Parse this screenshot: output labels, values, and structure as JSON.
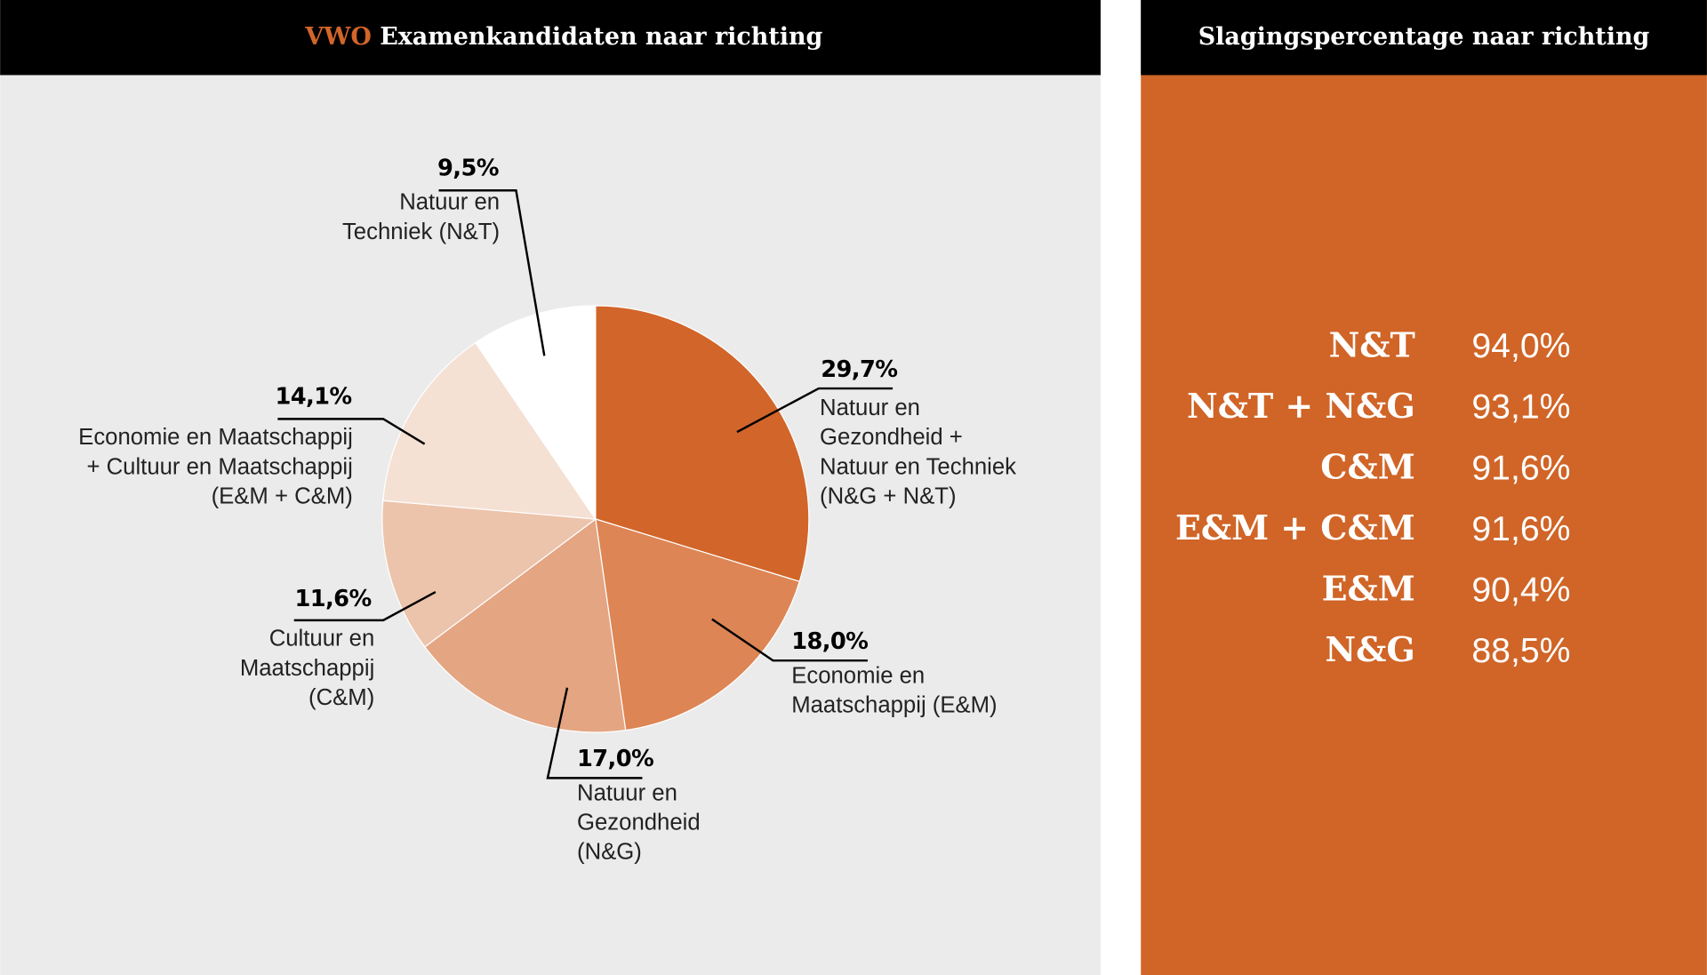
{
  "chart_data": {
    "type": "pie",
    "title_highlight": "VWO",
    "title": "Examenkandidaten naar richting",
    "labels": [
      [
        "Natuur en",
        "Gezondheid +",
        "Natuur en Techniek",
        "(N&G + N&T)"
      ],
      [
        "Economie en",
        "Maatschappij (E&M)"
      ],
      [
        "Natuur en",
        "Gezondheid",
        "(N&G)"
      ],
      [
        "Cultuur en",
        "Maatschappij",
        "(C&M)"
      ],
      [
        "Economie en Maatschappij",
        "+ Cultuur en Maatschappij",
        "(E&M + C&M)"
      ],
      [
        "Natuur en",
        "Techniek (N&T)"
      ]
    ],
    "values": [
      29.7,
      18.0,
      17.0,
      11.6,
      14.1,
      9.5
    ],
    "value_labels": [
      "29,7%",
      "18,0%",
      "17,0%",
      "11,6%",
      "14,1%",
      "9,5%"
    ],
    "colors": [
      "#d2652a",
      "#dd8554",
      "#e4a582",
      "#ecc4ab",
      "#f5e0d4",
      "#ffffff"
    ]
  },
  "table": {
    "title": "Slagingspercentage naar richting",
    "rows": [
      [
        "N&T",
        "94,0%"
      ],
      [
        "N&T + N&G",
        "93,1%"
      ],
      [
        "C&M",
        "91,6%"
      ],
      [
        "E&M + C&M",
        "91,6%"
      ],
      [
        "E&M",
        "90,4%"
      ],
      [
        "N&G",
        "88,5%"
      ]
    ]
  }
}
